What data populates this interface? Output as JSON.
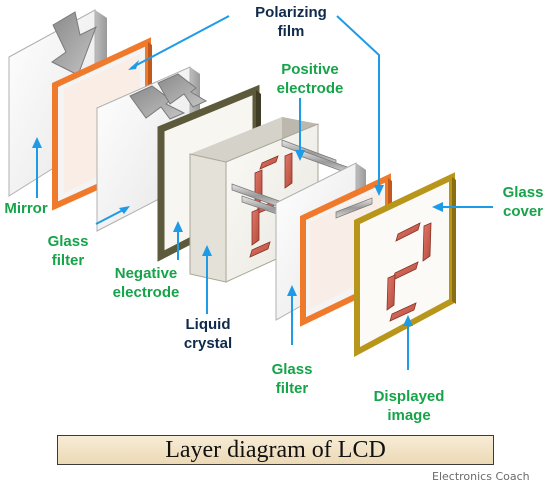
{
  "labels": {
    "polarizing_film_1": "Polarizing",
    "polarizing_film_2": "film",
    "positive_electrode_1": "Positive",
    "positive_electrode_2": "electrode",
    "mirror": "Mirror",
    "glass_filter_left_1": "Glass",
    "glass_filter_left_2": "filter",
    "negative_electrode_1": "Negative",
    "negative_electrode_2": "electrode",
    "liquid_crystal_1": "Liquid",
    "liquid_crystal_2": "crystal",
    "glass_filter_right_1": "Glass",
    "glass_filter_right_2": "filter",
    "displayed_image_1": "Displayed",
    "displayed_image_2": "image",
    "glass_cover_1": "Glass",
    "glass_cover_2": "cover"
  },
  "caption": "Layer diagram of LCD",
  "credit": "Electronics Coach",
  "colors": {
    "label_green": "#17a34a",
    "label_navy": "#0f2a4a",
    "leader_blue": "#1e9be6",
    "polarizer_orange": "#f07a2c",
    "electrode_olive": "#5c5a3a",
    "cover_gold": "#b8961c",
    "segment_red": "#c8584a",
    "caption_bg": "#f1e2c4"
  }
}
